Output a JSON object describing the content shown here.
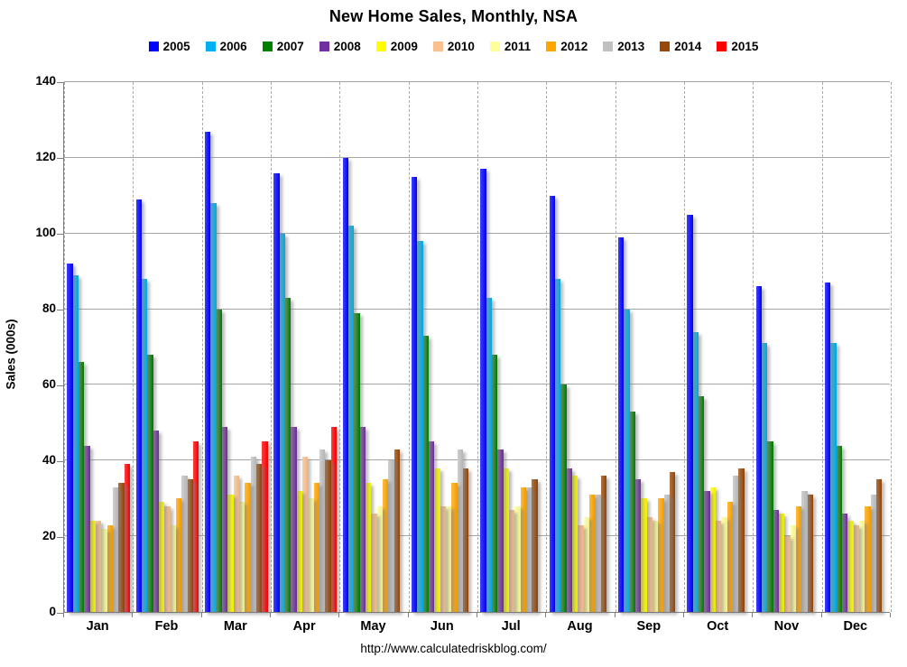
{
  "page": {
    "title": "New Home Sales, Monthly, NSA",
    "footer_url": "http://www.calculatedriskblog.com/"
  },
  "chart_data": {
    "type": "bar",
    "title": "New Home Sales, Monthly, NSA",
    "xlabel": "",
    "ylabel": "Sales (000s)",
    "ylim": [
      0,
      140
    ],
    "ytick_step": 20,
    "grid": true,
    "legend_position": "top",
    "categories": [
      "Jan",
      "Feb",
      "Mar",
      "Apr",
      "May",
      "Jun",
      "Jul",
      "Aug",
      "Sep",
      "Oct",
      "Nov",
      "Dec"
    ],
    "series": [
      {
        "name": "2005",
        "color": "#0000FF",
        "values": [
          92,
          109,
          127,
          116,
          120,
          115,
          117,
          110,
          99,
          105,
          86,
          87
        ]
      },
      {
        "name": "2006",
        "color": "#00B0F0",
        "values": [
          89,
          88,
          108,
          100,
          102,
          98,
          83,
          88,
          80,
          74,
          71,
          71
        ]
      },
      {
        "name": "2007",
        "color": "#008000",
        "values": [
          66,
          68,
          80,
          83,
          79,
          73,
          68,
          60,
          53,
          57,
          45,
          44
        ]
      },
      {
        "name": "2008",
        "color": "#7030A0",
        "values": [
          44,
          48,
          49,
          49,
          49,
          45,
          43,
          38,
          35,
          32,
          27,
          26
        ]
      },
      {
        "name": "2009",
        "color": "#FFFF00",
        "values": [
          24,
          29,
          31,
          32,
          34,
          38,
          38,
          36,
          30,
          33,
          26,
          24
        ]
      },
      {
        "name": "2010",
        "color": "#FAC090",
        "values": [
          24,
          28,
          36,
          41,
          26,
          28,
          27,
          23,
          25,
          24,
          20,
          23
        ]
      },
      {
        "name": "2011",
        "color": "#FFFF99",
        "values": [
          22,
          23,
          29,
          30,
          28,
          28,
          28,
          25,
          24,
          25,
          23,
          24
        ]
      },
      {
        "name": "2012",
        "color": "#FFA500",
        "values": [
          23,
          30,
          34,
          34,
          35,
          34,
          33,
          31,
          30,
          29,
          28,
          28
        ]
      },
      {
        "name": "2013",
        "color": "#C0C0C0",
        "values": [
          33,
          36,
          41,
          43,
          40,
          43,
          33,
          31,
          31,
          36,
          32,
          31
        ]
      },
      {
        "name": "2014",
        "color": "#974706",
        "values": [
          34,
          35,
          39,
          40,
          43,
          38,
          35,
          36,
          37,
          38,
          31,
          35
        ]
      },
      {
        "name": "2015",
        "color": "#FF0000",
        "values": [
          39,
          45,
          45,
          49,
          null,
          null,
          null,
          null,
          null,
          null,
          null,
          null
        ]
      }
    ]
  }
}
